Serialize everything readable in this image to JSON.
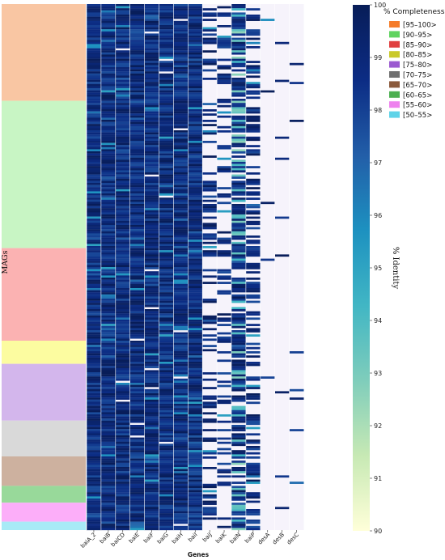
{
  "chart_data": {
    "type": "heatmap",
    "xlabel": "Genes",
    "ylabel": "MAGs",
    "colorbar_label": "% Identity",
    "colorbar_range": [
      90,
      100
    ],
    "colorbar_ticks": [
      "90",
      "91",
      "92",
      "93",
      "94",
      "95",
      "96",
      "97",
      "98",
      "99",
      "100"
    ],
    "colormap": [
      "#ffffd9",
      "#c7e9b4",
      "#7fcdbb",
      "#41b6c4",
      "#1d91c0",
      "#225ea8",
      "#0c2c84",
      "#081d58"
    ],
    "missing_color": "#f6f3fb",
    "genes": [
      "baiA_2",
      "baiB",
      "baiCD",
      "baiE",
      "baiF",
      "baiG",
      "baiH",
      "baiI",
      "baiJ",
      "baiK",
      "baiN",
      "baiP",
      "desA",
      "desB",
      "desC"
    ],
    "row_count": 250,
    "legend": {
      "title": "% Completeness",
      "position": "top-right",
      "entries": [
        {
          "label": "[95–100>",
          "color": "#f57c2a"
        },
        {
          "label": "[90–95>",
          "color": "#5fd35f"
        },
        {
          "label": "[85–90>",
          "color": "#e04040"
        },
        {
          "label": "[80–85>",
          "color": "#c9c92a"
        },
        {
          "label": "[75–80>",
          "color": "#9b59d0"
        },
        {
          "label": "[70–75>",
          "color": "#707070"
        },
        {
          "label": "[65–70>",
          "color": "#8b5a3c"
        },
        {
          "label": "[60–65>",
          "color": "#4caf50"
        },
        {
          "label": "[55–60>",
          "color": "#ee82ee"
        },
        {
          "label": "[50–55>",
          "color": "#5fd3e8"
        }
      ]
    },
    "completeness_groups": [
      {
        "label": "[95–100>",
        "rows": 46,
        "color": "#f9c6a3"
      },
      {
        "label": "[90–95>",
        "rows": 70,
        "color": "#c8f5c4"
      },
      {
        "label": "[85–90>",
        "rows": 44,
        "color": "#fbb2b2"
      },
      {
        "label": "[80–85>",
        "rows": 11,
        "color": "#fcfca0"
      },
      {
        "label": "[75–80>",
        "rows": 27,
        "color": "#d3b6ec"
      },
      {
        "label": "[70–75>",
        "rows": 17,
        "color": "#d9d9d9"
      },
      {
        "label": "[65–70>",
        "rows": 14,
        "color": "#cdb19f"
      },
      {
        "label": "[60–65>",
        "rows": 8,
        "color": "#98d99a"
      },
      {
        "label": "[55–60>",
        "rows": 9,
        "color": "#fcaef9"
      },
      {
        "label": "[50–55>",
        "rows": 4,
        "color": "#a8eaf6"
      }
    ],
    "column_presence": [
      1.0,
      0.99,
      0.99,
      0.99,
      0.98,
      0.98,
      0.98,
      1.0,
      0.35,
      0.28,
      0.85,
      0.55,
      0.02,
      0.02,
      0.02
    ]
  }
}
